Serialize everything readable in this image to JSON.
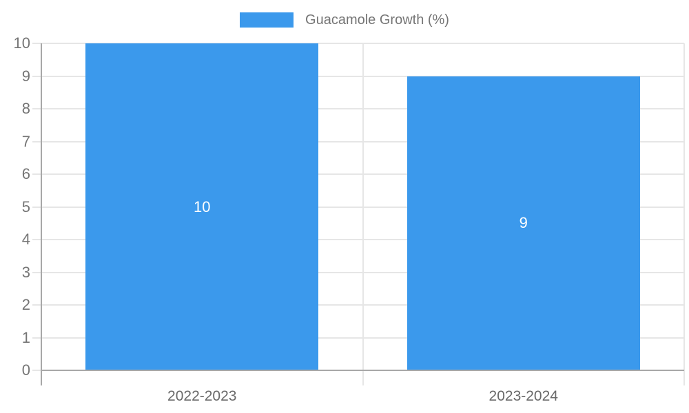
{
  "chart_data": {
    "type": "bar",
    "title": "",
    "legend": {
      "position": "top",
      "entries": [
        "Guacamole Growth (%)"
      ]
    },
    "categories": [
      "2022-2023",
      "2023-2024"
    ],
    "series": [
      {
        "name": "Guacamole Growth (%)",
        "values": [
          10,
          9
        ],
        "color": "#3b99ec"
      }
    ],
    "bar_value_labels": [
      "10",
      "9"
    ],
    "xlabel": "",
    "ylabel": "",
    "ylim": [
      0,
      10
    ],
    "y_ticks": [
      0,
      1,
      2,
      3,
      4,
      5,
      6,
      7,
      8,
      9,
      10
    ],
    "grid": true,
    "bar_band_fill_ratio": 0.725,
    "colors": {
      "bar": "#3b99ec",
      "gridline": "#e6e6e6",
      "axis_line": "#a8a8a8",
      "y_tick_text": "#757575",
      "x_tick_text": "#696969",
      "legend_text": "#757575",
      "bar_label_text": "#ffffff",
      "background": "#ffffff"
    }
  }
}
